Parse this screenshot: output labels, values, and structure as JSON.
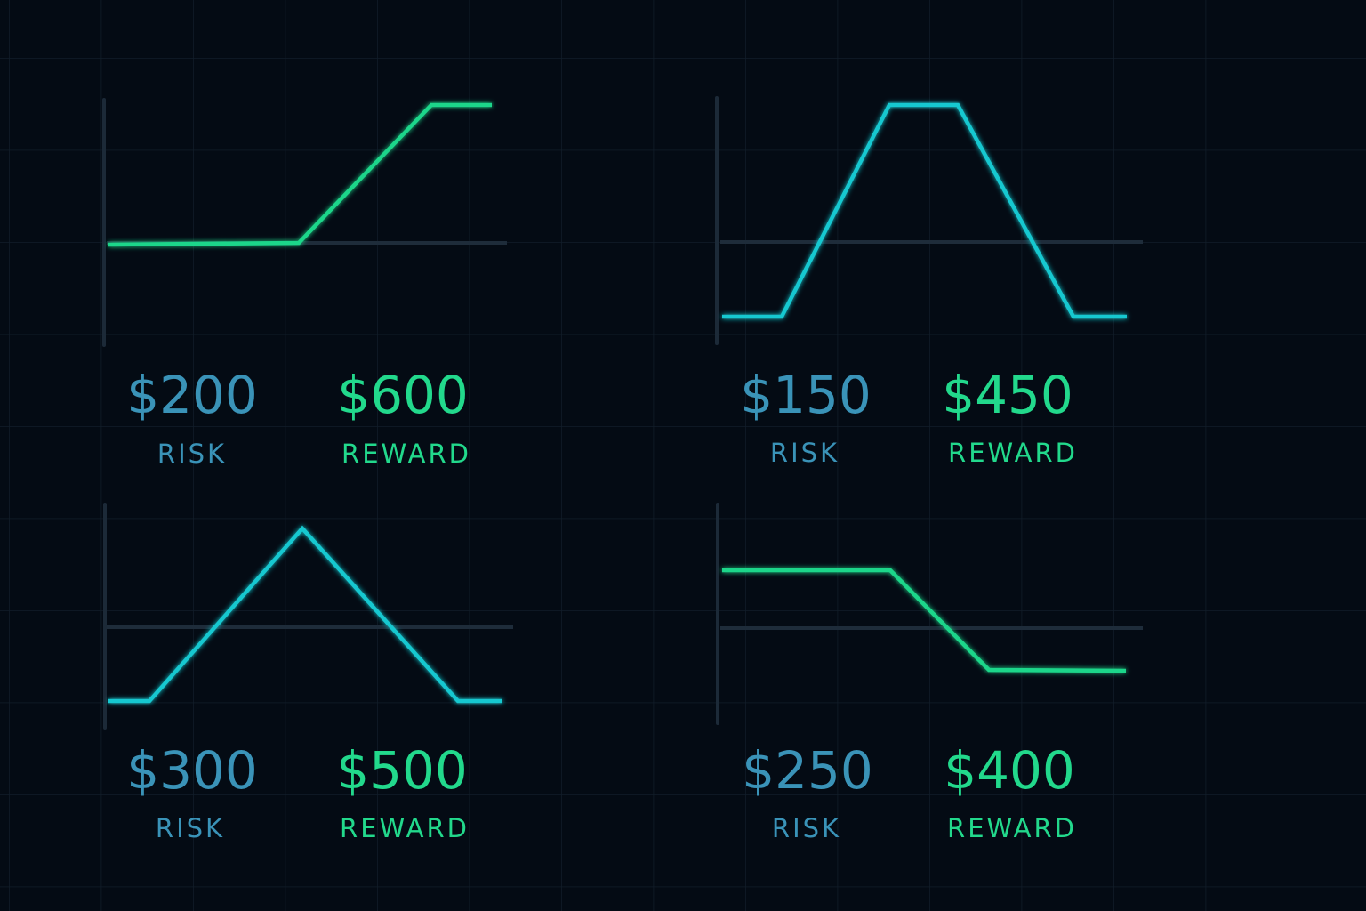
{
  "panels": [
    {
      "risk": {
        "amount": "$200",
        "label": "RISK"
      },
      "reward": {
        "amount": "$600",
        "label": "REWARD"
      }
    },
    {
      "risk": {
        "amount": "$150",
        "label": "RISK"
      },
      "reward": {
        "amount": "$450",
        "label": "REWARD"
      }
    },
    {
      "risk": {
        "amount": "$300",
        "label": "RISK"
      },
      "reward": {
        "amount": "$500",
        "label": "REWARD"
      }
    },
    {
      "risk": {
        "amount": "$250",
        "label": "RISK"
      },
      "reward": {
        "amount": "$400",
        "label": "REWARD"
      }
    }
  ]
}
